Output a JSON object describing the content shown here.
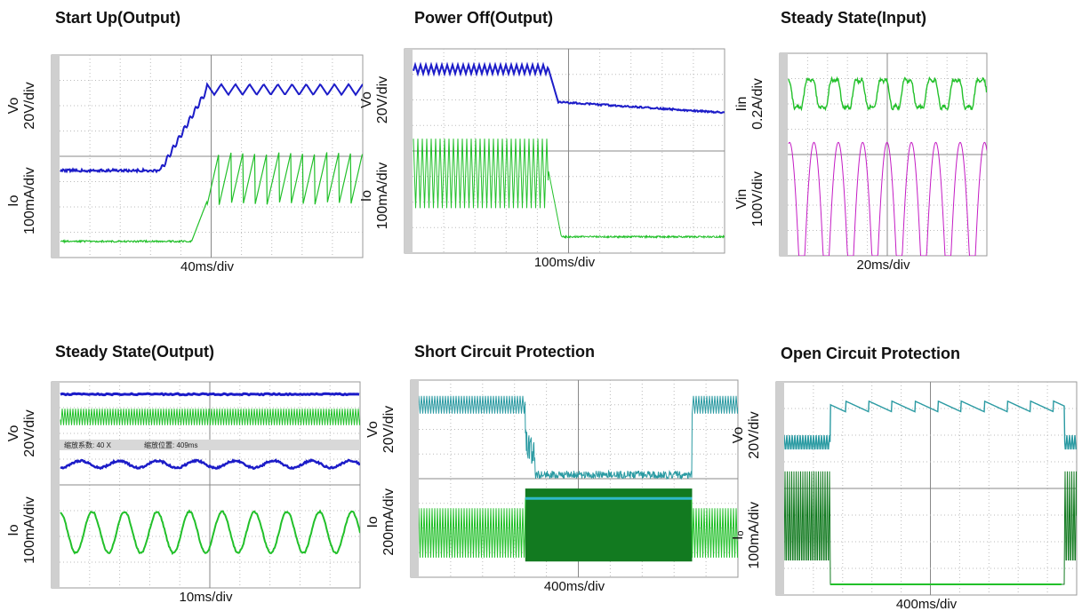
{
  "panels": [
    {
      "title": "Start Up(Output)",
      "time_scale": "40ms/div",
      "top": {
        "signal": "Vo",
        "scale": "20V/div"
      },
      "bottom": {
        "signal": "Io",
        "scale": "100mA/div"
      }
    },
    {
      "title": "Power Off(Output)",
      "time_scale": "100ms/div",
      "top": {
        "signal": "Vo",
        "scale": "20V/div"
      },
      "bottom": {
        "signal": "Io",
        "scale": "100mA/div"
      }
    },
    {
      "title": "Steady State(Input)",
      "time_scale": "20ms/div",
      "top": {
        "signal": "Iin",
        "scale": "0.2A/div"
      },
      "bottom": {
        "signal": "Vin",
        "scale": "100V/div"
      }
    },
    {
      "title": "Steady State(Output)",
      "time_scale": "10ms/div",
      "top": {
        "signal": "Vo",
        "scale": "20V/div"
      },
      "bottom": {
        "signal": "Io",
        "scale": "100mA/div"
      },
      "zoom_notes": [
        "缩放系数: 40 X",
        "缩放位置: 409ms"
      ]
    },
    {
      "title": "Short Circuit Protection",
      "time_scale": "400ms/div",
      "top": {
        "signal": "Vo",
        "scale": "20V/div"
      },
      "bottom": {
        "signal": "Io",
        "scale": "200mA/div"
      }
    },
    {
      "title": "Open Circuit Protection",
      "time_scale": "400ms/div",
      "top": {
        "signal": "Vo",
        "scale": "20V/div"
      },
      "bottom": {
        "signal": "Iₒ",
        "scale": "100mA/div"
      }
    }
  ]
}
